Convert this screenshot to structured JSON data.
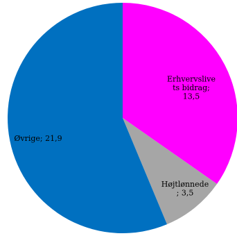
{
  "chart_data": {
    "type": "pie",
    "title": "",
    "slices": [
      {
        "label_lines": [
          "Erhvervslive",
          "ts bidrag;",
          "13,5"
        ],
        "value": 13.5,
        "color": "#ff00ff"
      },
      {
        "label_lines": [
          "Højtlønnede",
          "; 3,5"
        ],
        "value": 3.5,
        "color": "#a6a6a6"
      },
      {
        "label_lines": [
          "Øvrige; 21,9"
        ],
        "value": 21.9,
        "color": "#0070c0"
      }
    ],
    "start_angle_deg": 0,
    "direction": "clockwise",
    "legend": "none"
  }
}
